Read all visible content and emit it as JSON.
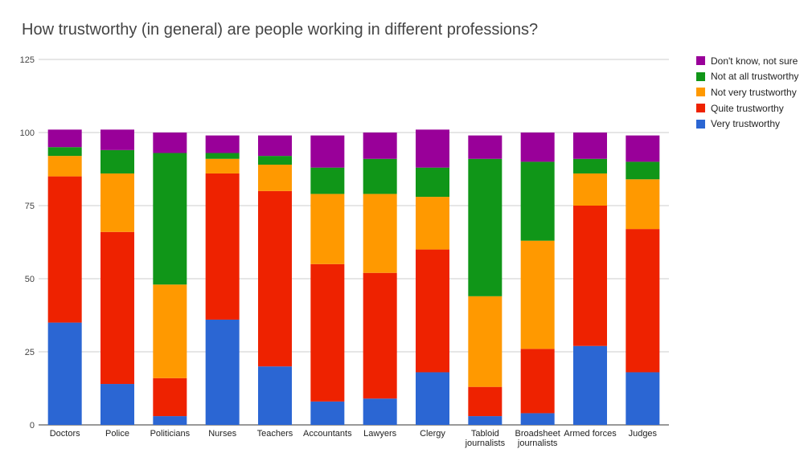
{
  "chart_data": {
    "type": "bar",
    "stacked": true,
    "title": "How trustworthy (in general) are people working in different professions?",
    "xlabel": "",
    "ylabel": "",
    "ylim": [
      0,
      125
    ],
    "yticks": [
      0,
      25,
      50,
      75,
      100,
      125
    ],
    "grid": true,
    "legend_position": "right",
    "categories": [
      "Doctors",
      "Police",
      "Politicians",
      "Nurses",
      "Teachers",
      "Accountants",
      "Lawyers",
      "Clergy",
      "Tabloid journalists",
      "Broadsheet journalists",
      "Armed forces",
      "Judges"
    ],
    "series": [
      {
        "name": "Very trustworthy",
        "color": "#2b66d3",
        "values": [
          35,
          14,
          3,
          36,
          20,
          8,
          9,
          18,
          3,
          4,
          27,
          18
        ]
      },
      {
        "name": "Quite trustworthy",
        "color": "#ee2200",
        "values": [
          50,
          52,
          13,
          50,
          60,
          47,
          43,
          42,
          10,
          22,
          48,
          49
        ]
      },
      {
        "name": "Not very trustworthy",
        "color": "#ff9900",
        "values": [
          7,
          20,
          32,
          5,
          9,
          24,
          27,
          18,
          31,
          37,
          11,
          17
        ]
      },
      {
        "name": "Not at all trustworthy",
        "color": "#109618",
        "values": [
          3,
          8,
          45,
          2,
          3,
          9,
          12,
          10,
          47,
          27,
          5,
          6
        ]
      },
      {
        "name": "Don't know, not sure",
        "color": "#990099",
        "values": [
          6,
          7,
          7,
          6,
          7,
          11,
          9,
          13,
          8,
          10,
          9,
          9
        ]
      }
    ],
    "legend_order": [
      "Don't know, not sure",
      "Not at all trustworthy",
      "Not very trustworthy",
      "Quite trustworthy",
      "Very trustworthy"
    ]
  }
}
